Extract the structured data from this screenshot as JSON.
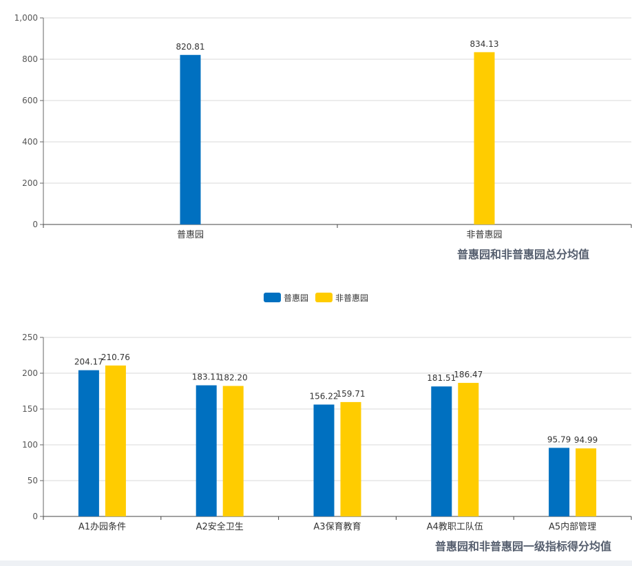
{
  "colors": {
    "series1": "#0070c0",
    "series2": "#ffcc00"
  },
  "legend": [
    "普惠园",
    "非普惠园"
  ],
  "chart_data": [
    {
      "type": "bar",
      "title": "普惠园和非普惠园总分均值",
      "categories": [
        "普惠园",
        "非普惠园"
      ],
      "values": [
        820.81,
        834.13
      ],
      "value_labels": [
        "820.81",
        "834.13"
      ],
      "ylim": [
        0,
        1000
      ],
      "yticks": [
        0,
        200,
        400,
        600,
        800,
        1000
      ],
      "ytick_labels": [
        "0",
        "200",
        "400",
        "600",
        "800",
        "1,000"
      ],
      "xlabel": "",
      "ylabel": "",
      "grid": true
    },
    {
      "type": "bar",
      "title": "普惠园和非普惠园一级指标得分均值",
      "categories": [
        "A1办园条件",
        "A2安全卫生",
        "A3保育教育",
        "A4教职工队伍",
        "A5内部管理"
      ],
      "series": [
        {
          "name": "普惠园",
          "values": [
            204.17,
            183.11,
            156.22,
            181.51,
            95.79
          ],
          "value_labels": [
            "204.17",
            "183.11",
            "156.22",
            "181.51",
            "95.79"
          ]
        },
        {
          "name": "非普惠园",
          "values": [
            210.76,
            182.2,
            159.71,
            186.47,
            94.99
          ],
          "value_labels": [
            "210.76",
            "182.20",
            "159.71",
            "186.47",
            "94.99"
          ]
        }
      ],
      "ylim": [
        0,
        250
      ],
      "yticks": [
        0,
        50,
        100,
        150,
        200,
        250
      ],
      "ytick_labels": [
        "0",
        "50",
        "100",
        "150",
        "200",
        "250"
      ],
      "xlabel": "",
      "ylabel": "",
      "grid": true,
      "legend_position": "top-center"
    }
  ]
}
